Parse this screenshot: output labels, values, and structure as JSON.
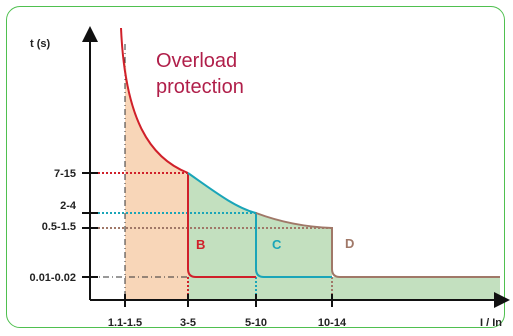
{
  "chart_data": {
    "type": "line",
    "ylabel": "t (s)",
    "xlabel": "I / In",
    "annotation": "Overload protection",
    "annotation_lines": [
      "Overload",
      "protection"
    ],
    "x_ticks": [
      "1.1-1.5",
      "3-5",
      "5-10",
      "10-14"
    ],
    "y_ticks": [
      "7-15",
      "2-4",
      "0.5-1.5",
      "0.01-0.02"
    ],
    "grid": false,
    "series": [
      {
        "name": "B",
        "color": "#d0202a",
        "trip_current": "3-5",
        "trip_time": "7-15"
      },
      {
        "name": "C",
        "color": "#1aa5b8",
        "trip_current": "5-10",
        "trip_time": "2-4"
      },
      {
        "name": "D",
        "color": "#a07868",
        "trip_current": "10-14",
        "trip_time": "0.5-1.5"
      }
    ],
    "colors": {
      "overload_zone": "#f8d6b8",
      "trip_zone": "#c3e0bf",
      "annotation": "#b01f4a",
      "frame": "#4fc04f"
    }
  }
}
